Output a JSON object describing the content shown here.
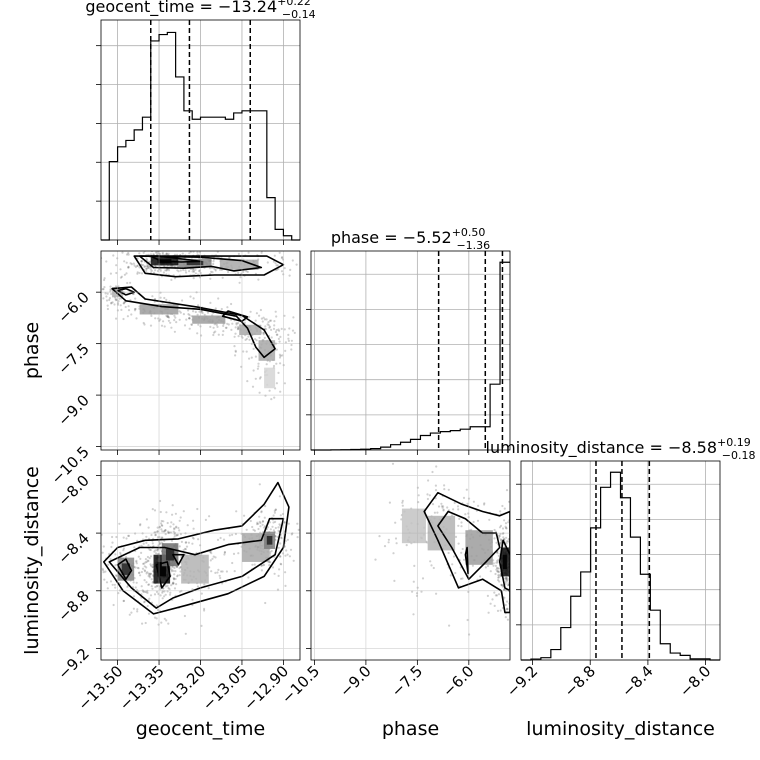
{
  "chart_data": {
    "type": "corner",
    "parameters": [
      "geocent_time",
      "phase",
      "luminosity_distance"
    ],
    "axis_labels": {
      "geocent_time": "geocent_time",
      "phase": "phase",
      "luminosity_distance": "luminosity_distance"
    },
    "ranges": {
      "geocent_time": [
        -13.56,
        -12.84
      ],
      "phase": [
        -10.6,
        -4.8
      ],
      "luminosity_distance": [
        -9.28,
        -7.9
      ]
    },
    "ticks": {
      "geocent_time": [
        -13.5,
        -13.35,
        -13.2,
        -13.05,
        -12.9
      ],
      "phase": [
        -10.5,
        -9.0,
        -7.5,
        -6.0
      ],
      "luminosity_distance": [
        -9.2,
        -8.8,
        -8.4,
        -8.0
      ]
    },
    "tick_labels": {
      "geocent_time": [
        "−13.50",
        "−13.35",
        "−13.20",
        "−13.05",
        "−12.90"
      ],
      "phase": [
        "−10.5",
        "−9.0",
        "−7.5",
        "−6.0"
      ],
      "luminosity_distance": [
        "−9.2",
        "−8.8",
        "−8.4",
        "−8.0"
      ]
    },
    "titles": {
      "geocent_time": {
        "name": "geocent_time",
        "median": "−13.24",
        "plus": "+0.22",
        "minus": "−0.14"
      },
      "phase": {
        "name": "phase",
        "median": "−5.52",
        "plus": "+0.50",
        "minus": "−1.36"
      },
      "luminosity_distance": {
        "name": "luminosity_distance",
        "median": "−8.58",
        "plus": "+0.19",
        "minus": "−0.18"
      }
    },
    "quantiles": {
      "geocent_time": [
        -13.38,
        -13.24,
        -13.02
      ],
      "phase": [
        -6.88,
        -5.52,
        -5.02
      ],
      "luminosity_distance": [
        -8.76,
        -8.58,
        -8.39
      ]
    },
    "histograms": {
      "geocent_time": {
        "edges": [
          -13.56,
          -13.53,
          -13.5,
          -13.47,
          -13.44,
          -13.41,
          -13.38,
          -13.35,
          -13.32,
          -13.29,
          -13.26,
          -13.23,
          -13.2,
          -13.17,
          -13.14,
          -13.11,
          -13.08,
          -13.05,
          -13.02,
          -12.99,
          -12.96,
          -12.93,
          -12.9,
          -12.87,
          -12.84
        ],
        "counts": [
          0,
          370,
          440,
          470,
          520,
          580,
          940,
          970,
          980,
          770,
          610,
          570,
          580,
          580,
          580,
          570,
          600,
          610,
          610,
          610,
          200,
          50,
          20,
          0
        ]
      },
      "phase": {
        "edges": [
          -10.6,
          -10.31,
          -10.02,
          -9.73,
          -9.44,
          -9.15,
          -8.86,
          -8.57,
          -8.28,
          -7.99,
          -7.7,
          -7.41,
          -7.12,
          -6.83,
          -6.54,
          -6.25,
          -5.96,
          -5.67,
          -5.38,
          -5.09,
          -4.8
        ],
        "counts": [
          0,
          0,
          2,
          3,
          5,
          8,
          14,
          30,
          55,
          80,
          110,
          150,
          175,
          190,
          200,
          215,
          240,
          240,
          680,
          1940
        ]
      },
      "luminosity_distance": {
        "edges": [
          -9.28,
          -9.211,
          -9.142,
          -9.073,
          -9.004,
          -8.935,
          -8.866,
          -8.797,
          -8.728,
          -8.659,
          -8.59,
          -8.521,
          -8.452,
          -8.383,
          -8.314,
          -8.245,
          -8.176,
          -8.107,
          -8.038,
          -7.969,
          -7.9
        ],
        "counts": [
          0,
          4,
          10,
          45,
          140,
          275,
          380,
          570,
          745,
          810,
          700,
          530,
          370,
          215,
          70,
          30,
          20,
          5,
          5,
          0
        ]
      }
    },
    "density_2d": {
      "phase_vs_geocent_time": {
        "x": "geocent_time",
        "y": "phase",
        "blobs": [
          {
            "cx": -13.33,
            "cy": -5.1,
            "sx": 0.05,
            "sy": 0.12,
            "w": 1.0
          },
          {
            "cx": -13.22,
            "cy": -5.15,
            "sx": 0.06,
            "sy": 0.12,
            "w": 0.45
          },
          {
            "cx": -13.06,
            "cy": -5.2,
            "sx": 0.07,
            "sy": 0.15,
            "w": 0.3
          },
          {
            "cx": -13.5,
            "cy": -6.0,
            "sx": 0.02,
            "sy": 0.15,
            "w": 0.25
          },
          {
            "cx": -13.35,
            "cy": -6.5,
            "sx": 0.07,
            "sy": 0.15,
            "w": 0.35
          },
          {
            "cx": -13.17,
            "cy": -6.8,
            "sx": 0.06,
            "sy": 0.12,
            "w": 0.35
          },
          {
            "cx": -13.02,
            "cy": -7.1,
            "sx": 0.04,
            "sy": 0.15,
            "w": 0.3
          },
          {
            "cx": -12.96,
            "cy": -7.7,
            "sx": 0.03,
            "sy": 0.3,
            "w": 0.3
          },
          {
            "cx": -12.95,
            "cy": -8.5,
            "sx": 0.02,
            "sy": 0.3,
            "w": 0.1
          }
        ],
        "contours": [
          [
            [
              -13.38,
              -4.95
            ],
            [
              -13.34,
              -5.1
            ],
            [
              -13.27,
              -5.12
            ],
            [
              -13.2,
              -5.1
            ],
            [
              -13.28,
              -5.02
            ],
            [
              -13.35,
              -4.95
            ]
          ],
          [
            [
              -13.42,
              -4.95
            ],
            [
              -13.37,
              -5.28
            ],
            [
              -13.26,
              -5.3
            ],
            [
              -13.16,
              -5.25
            ],
            [
              -13.08,
              -5.38
            ],
            [
              -12.98,
              -5.28
            ],
            [
              -13.05,
              -5.08
            ],
            [
              -13.2,
              -4.98
            ]
          ],
          [
            [
              -13.44,
              -4.95
            ],
            [
              -13.4,
              -5.45
            ],
            [
              -13.29,
              -5.55
            ],
            [
              -13.15,
              -5.5
            ],
            [
              -12.97,
              -5.5
            ],
            [
              -12.9,
              -5.2
            ],
            [
              -12.96,
              -4.95
            ]
          ],
          [
            [
              -13.5,
              -5.95
            ],
            [
              -13.47,
              -6.08
            ],
            [
              -13.44,
              -6.0
            ],
            [
              -13.47,
              -5.9
            ]
          ],
          [
            [
              -13.52,
              -5.9
            ],
            [
              -13.47,
              -6.25
            ],
            [
              -13.34,
              -6.42
            ],
            [
              -13.2,
              -6.5
            ],
            [
              -13.07,
              -6.7
            ],
            [
              -13.03,
              -7.05
            ],
            [
              -13.0,
              -7.6
            ],
            [
              -12.97,
              -7.9
            ],
            [
              -12.93,
              -7.65
            ],
            [
              -12.97,
              -7.1
            ],
            [
              -13.05,
              -6.68
            ],
            [
              -13.2,
              -6.45
            ],
            [
              -13.4,
              -6.2
            ],
            [
              -13.45,
              -5.85
            ]
          ],
          [
            [
              -13.1,
              -6.55
            ],
            [
              -13.03,
              -6.72
            ],
            [
              -13.05,
              -6.85
            ],
            [
              -13.12,
              -6.7
            ]
          ]
        ]
      },
      "luminosity_distance_vs_geocent_time": {
        "x": "geocent_time",
        "y": "luminosity_distance",
        "blobs": [
          {
            "cx": -13.47,
            "cy": -8.65,
            "sx": 0.03,
            "sy": 0.08,
            "w": 0.45
          },
          {
            "cx": -13.34,
            "cy": -8.65,
            "sx": 0.03,
            "sy": 0.1,
            "w": 1.0
          },
          {
            "cx": -13.31,
            "cy": -8.55,
            "sx": 0.03,
            "sy": 0.08,
            "w": 0.55
          },
          {
            "cx": -13.22,
            "cy": -8.65,
            "sx": 0.05,
            "sy": 0.1,
            "w": 0.25
          },
          {
            "cx": -13.0,
            "cy": -8.5,
            "sx": 0.05,
            "sy": 0.1,
            "w": 0.3
          },
          {
            "cx": -12.95,
            "cy": -8.45,
            "sx": 0.02,
            "sy": 0.06,
            "w": 0.5
          }
        ],
        "contours": [
          [
            [
              -13.5,
              -8.62
            ],
            [
              -13.47,
              -8.72
            ],
            [
              -13.45,
              -8.66
            ],
            [
              -13.47,
              -8.58
            ]
          ],
          [
            [
              -13.36,
              -8.62
            ],
            [
              -13.34,
              -8.78
            ],
            [
              -13.31,
              -8.7
            ],
            [
              -13.32,
              -8.6
            ]
          ],
          [
            [
              -13.3,
              -8.55
            ],
            [
              -13.28,
              -8.62
            ],
            [
              -13.26,
              -8.55
            ]
          ],
          [
            [
              -13.53,
              -8.6
            ],
            [
              -13.45,
              -8.78
            ],
            [
              -13.36,
              -8.92
            ],
            [
              -13.3,
              -8.85
            ],
            [
              -13.2,
              -8.78
            ],
            [
              -13.05,
              -8.7
            ],
            [
              -12.93,
              -8.55
            ],
            [
              -12.9,
              -8.3
            ],
            [
              -12.95,
              -8.3
            ],
            [
              -12.98,
              -8.45
            ],
            [
              -13.1,
              -8.48
            ],
            [
              -13.22,
              -8.55
            ],
            [
              -13.33,
              -8.5
            ],
            [
              -13.42,
              -8.5
            ]
          ],
          [
            [
              -13.55,
              -8.6
            ],
            [
              -13.48,
              -8.8
            ],
            [
              -13.37,
              -8.96
            ],
            [
              -13.25,
              -8.9
            ],
            [
              -13.1,
              -8.82
            ],
            [
              -12.97,
              -8.7
            ],
            [
              -12.9,
              -8.5
            ],
            [
              -12.88,
              -8.22
            ],
            [
              -12.92,
              -8.05
            ],
            [
              -12.97,
              -8.2
            ],
            [
              -13.05,
              -8.35
            ],
            [
              -13.15,
              -8.38
            ],
            [
              -13.28,
              -8.44
            ],
            [
              -13.4,
              -8.45
            ],
            [
              -13.5,
              -8.5
            ]
          ]
        ]
      },
      "luminosity_distance_vs_phase": {
        "x": "phase",
        "y": "luminosity_distance",
        "blobs": [
          {
            "cx": -4.95,
            "cy": -8.6,
            "sx": 0.12,
            "sy": 0.1,
            "w": 1.0
          },
          {
            "cx": -5.7,
            "cy": -8.5,
            "sx": 0.4,
            "sy": 0.12,
            "w": 0.35
          },
          {
            "cx": -6.8,
            "cy": -8.4,
            "sx": 0.4,
            "sy": 0.12,
            "w": 0.25
          },
          {
            "cx": -7.6,
            "cy": -8.35,
            "sx": 0.35,
            "sy": 0.12,
            "w": 0.18
          }
        ],
        "contours": [
          [
            [
              -6.1,
              -8.55
            ],
            [
              -6.02,
              -8.68
            ],
            [
              -6.05,
              -8.5
            ]
          ],
          [
            [
              -4.8,
              -8.55
            ],
            [
              -5.0,
              -8.45
            ],
            [
              -5.1,
              -8.6
            ],
            [
              -4.95,
              -8.78
            ],
            [
              -4.8,
              -8.8
            ]
          ],
          [
            [
              -6.9,
              -8.35
            ],
            [
              -6.5,
              -8.5
            ],
            [
              -6.0,
              -8.72
            ],
            [
              -5.5,
              -8.6
            ],
            [
              -5.1,
              -8.5
            ],
            [
              -5.2,
              -8.4
            ],
            [
              -5.6,
              -8.4
            ],
            [
              -6.1,
              -8.3
            ],
            [
              -6.6,
              -8.25
            ]
          ],
          [
            [
              -7.3,
              -8.25
            ],
            [
              -6.9,
              -8.45
            ],
            [
              -6.3,
              -8.78
            ],
            [
              -5.6,
              -8.72
            ],
            [
              -5.05,
              -8.8
            ],
            [
              -4.95,
              -8.95
            ],
            [
              -4.8,
              -8.95
            ],
            [
              -4.8,
              -8.25
            ],
            [
              -5.1,
              -8.28
            ],
            [
              -5.6,
              -8.25
            ],
            [
              -6.2,
              -8.2
            ],
            [
              -6.9,
              -8.12
            ]
          ]
        ]
      }
    }
  }
}
